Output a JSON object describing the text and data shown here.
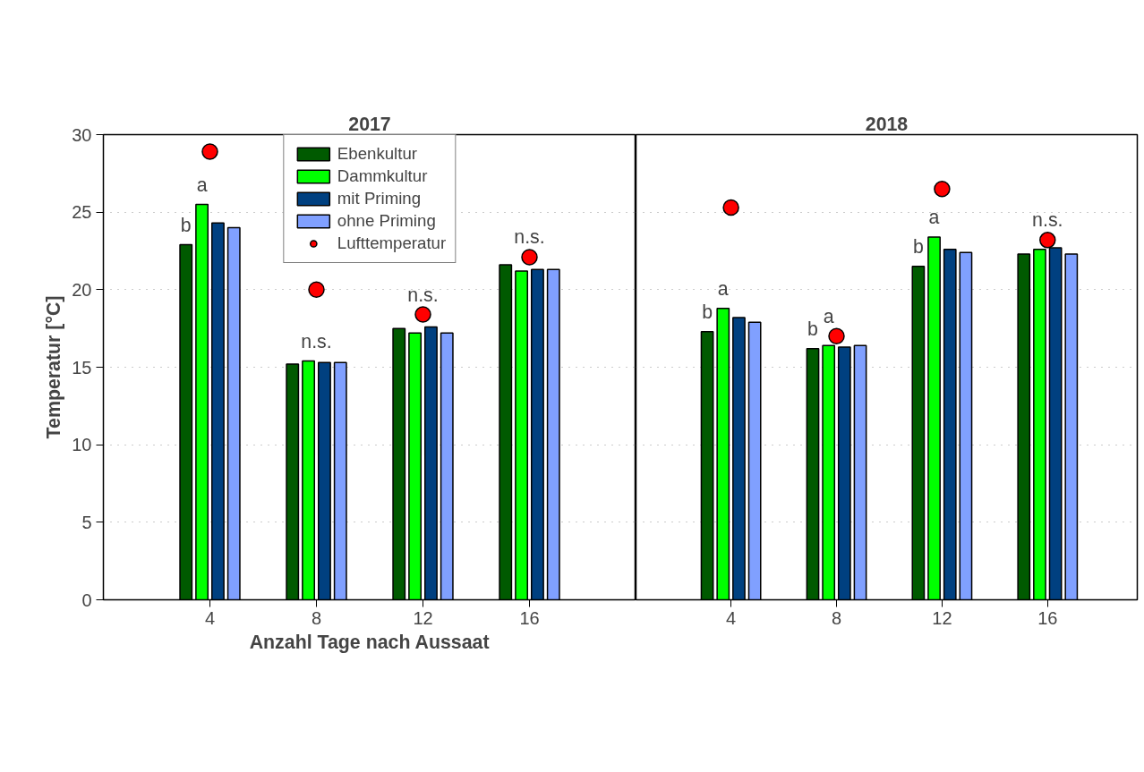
{
  "chart_data": [
    {
      "type": "bar",
      "title": "2017",
      "xlabel": "Anzahl Tage nach Aussaat",
      "ylabel": "Temperatur [°C]",
      "x": [
        4,
        8,
        12,
        16
      ],
      "xlim": [
        0,
        20
      ],
      "xticks": [
        4,
        8,
        12,
        16
      ],
      "ylim": [
        0,
        30
      ],
      "yticks": [
        0,
        5,
        10,
        15,
        20,
        25,
        30
      ],
      "grid": "y",
      "legend": "top",
      "series": [
        {
          "name": "Ebenkultur",
          "color": "#005a00",
          "values": [
            22.9,
            15.2,
            17.5,
            21.6
          ]
        },
        {
          "name": "Dammkultur",
          "color": "#00ff00",
          "values": [
            25.5,
            15.4,
            17.2,
            21.2
          ]
        },
        {
          "name": "mit Priming",
          "color": "#004080",
          "values": [
            24.3,
            15.3,
            17.6,
            21.3
          ]
        },
        {
          "name": "ohne Priming",
          "color": "#80a0ff",
          "values": [
            24.0,
            15.3,
            17.2,
            21.3
          ]
        },
        {
          "name": "Lufttemperatur",
          "type": "scatter",
          "marker": "circle",
          "color": "#ff0000",
          "values": [
            28.9,
            20.0,
            18.4,
            22.1
          ]
        }
      ],
      "annotations": [
        {
          "text": "b",
          "x": 3.1,
          "y": 22.9
        },
        {
          "text": "a",
          "x": 3.7,
          "y": 25.5
        },
        {
          "text": "n.s.",
          "x": 8,
          "y": 15.4
        },
        {
          "text": "n.s.",
          "x": 12,
          "y": 18.4
        },
        {
          "text": "n.s.",
          "x": 16,
          "y": 22.1
        }
      ]
    },
    {
      "type": "bar",
      "title": "2018",
      "x": [
        4,
        8,
        12,
        16
      ],
      "xlim": [
        0.4,
        19.4
      ],
      "xticks": [
        4,
        8,
        12,
        16
      ],
      "ylim": [
        0,
        30
      ],
      "yticks": [
        0,
        5,
        10,
        15,
        20,
        25,
        30
      ],
      "grid": "y",
      "tick_labels": "x",
      "series": [
        {
          "color": "#005a00",
          "values": [
            17.3,
            16.2,
            21.5,
            22.3
          ]
        },
        {
          "color": "#00ff00",
          "values": [
            18.8,
            16.4,
            23.4,
            22.6
          ]
        },
        {
          "color": "#004080",
          "values": [
            18.2,
            16.3,
            22.6,
            22.7
          ]
        },
        {
          "color": "#80a0ff",
          "values": [
            17.9,
            16.4,
            22.4,
            22.3
          ]
        },
        {
          "type": "scatter",
          "marker": "circle",
          "color": "#ff0000",
          "values": [
            25.3,
            17.0,
            26.5,
            23.2
          ]
        }
      ],
      "annotations": [
        {
          "text": "b",
          "x": 3.1,
          "y": 17.3
        },
        {
          "text": "a",
          "x": 3.7,
          "y": 18.8
        },
        {
          "text": "b",
          "x": 7.1,
          "y": 16.2
        },
        {
          "text": "a",
          "x": 7.7,
          "y": 17.0
        },
        {
          "text": "b",
          "x": 11.1,
          "y": 21.5
        },
        {
          "text": "a",
          "x": 11.7,
          "y": 23.4
        },
        {
          "text": "n.s.",
          "x": 16,
          "y": 23.2
        }
      ]
    }
  ]
}
